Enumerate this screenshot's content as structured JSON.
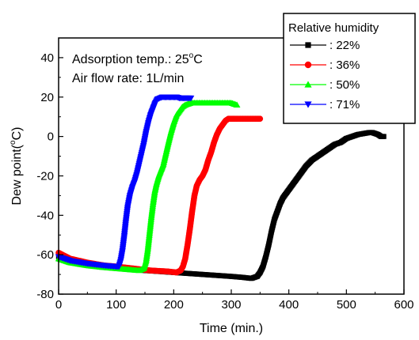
{
  "chart_data": {
    "type": "scatter",
    "xlabel": "Time (min.)",
    "ylabel": "Dew point(°C)",
    "ylabel_parts": {
      "pre": "Dew point(",
      "sup": "o",
      "post": "C)"
    },
    "xlim": [
      0,
      600
    ],
    "ylim": [
      -80,
      50
    ],
    "xticks": [
      0,
      100,
      200,
      300,
      400,
      500,
      600
    ],
    "yticks": [
      -80,
      -60,
      -40,
      -20,
      0,
      20,
      40
    ],
    "grid": false,
    "annotations": [
      {
        "pre": "Adsorption temp.: 25",
        "sup": "o",
        "post": "C",
        "text": "Adsorption temp.: 25°C"
      },
      {
        "pre": "Air flow rate: 1L/min",
        "sup": "",
        "post": "",
        "text": "Air flow rate: 1L/min"
      }
    ],
    "legend": {
      "title": "Relative humidity",
      "placement": "top-right"
    },
    "series": [
      {
        "name": ": 22%",
        "color": "#000000",
        "marker": "square",
        "x": [
          0,
          20,
          50,
          100,
          150,
          200,
          250,
          300,
          320,
          335,
          345,
          350,
          355,
          360,
          365,
          370,
          375,
          380,
          385,
          390,
          395,
          400,
          410,
          420,
          430,
          440,
          450,
          460,
          470,
          480,
          490,
          500,
          510,
          520,
          530,
          540,
          545,
          550,
          555,
          560,
          565
        ],
        "y": [
          -61,
          -63,
          -65,
          -66.5,
          -68,
          -69,
          -70,
          -71,
          -71.5,
          -72,
          -71,
          -69,
          -66,
          -61,
          -55,
          -48,
          -42,
          -38,
          -34,
          -31,
          -29,
          -27,
          -23,
          -19,
          -15,
          -12,
          -10,
          -8,
          -6,
          -4,
          -3,
          -1,
          0,
          1,
          1.5,
          2,
          2,
          1.5,
          1,
          0,
          0
        ]
      },
      {
        "name": ": 36%",
        "color": "#ff0000",
        "marker": "circle",
        "x": [
          0,
          20,
          50,
          80,
          100,
          130,
          160,
          190,
          205,
          212,
          216,
          220,
          224,
          228,
          232,
          236,
          240,
          245,
          250,
          255,
          260,
          265,
          270,
          275,
          280,
          285,
          290,
          295,
          300,
          305,
          310,
          320,
          330,
          340,
          350
        ],
        "y": [
          -59,
          -62,
          -64,
          -65.5,
          -66,
          -67,
          -68,
          -68.5,
          -69,
          -68,
          -66,
          -62,
          -55,
          -47,
          -38,
          -30,
          -25,
          -22,
          -20,
          -17,
          -12,
          -8,
          -3,
          1,
          4,
          6,
          8,
          9,
          9,
          9,
          9,
          9,
          9,
          9,
          9
        ]
      },
      {
        "name": ": 50%",
        "color": "#00ff00",
        "marker": "triangle-up",
        "x": [
          0,
          20,
          50,
          80,
          100,
          120,
          140,
          148,
          152,
          155,
          158,
          161,
          164,
          167,
          170,
          174,
          178,
          182,
          186,
          190,
          195,
          200,
          205,
          210,
          215,
          220,
          225,
          230,
          240,
          250,
          260,
          270,
          280,
          290,
          300,
          310
        ],
        "y": [
          -62,
          -64,
          -65.5,
          -66.5,
          -67,
          -67.5,
          -68,
          -67,
          -63,
          -57,
          -49,
          -41,
          -34,
          -28,
          -24,
          -20,
          -17,
          -14,
          -9,
          -4,
          2,
          7,
          11,
          13,
          15,
          16,
          16.5,
          17,
          17,
          17,
          17,
          17,
          17,
          17,
          17,
          16
        ]
      },
      {
        "name": ": 71%",
        "color": "#0000ff",
        "marker": "triangle-down",
        "x": [
          0,
          20,
          50,
          80,
          100,
          105,
          108,
          111,
          114,
          117,
          120,
          124,
          128,
          132,
          136,
          140,
          144,
          148,
          152,
          156,
          160,
          164,
          168,
          172,
          176,
          180,
          185,
          190,
          195,
          200,
          205,
          210,
          215,
          220,
          225,
          230
        ],
        "y": [
          -61,
          -63,
          -64.5,
          -65.5,
          -66,
          -66,
          -63,
          -58,
          -51,
          -43,
          -36,
          -30,
          -26,
          -23,
          -19,
          -14,
          -9,
          -4,
          2,
          7,
          11,
          14,
          17,
          19,
          19.5,
          20,
          20,
          20,
          20,
          20,
          20,
          19.5,
          19.5,
          19.5,
          19.5,
          19.5
        ]
      }
    ]
  }
}
